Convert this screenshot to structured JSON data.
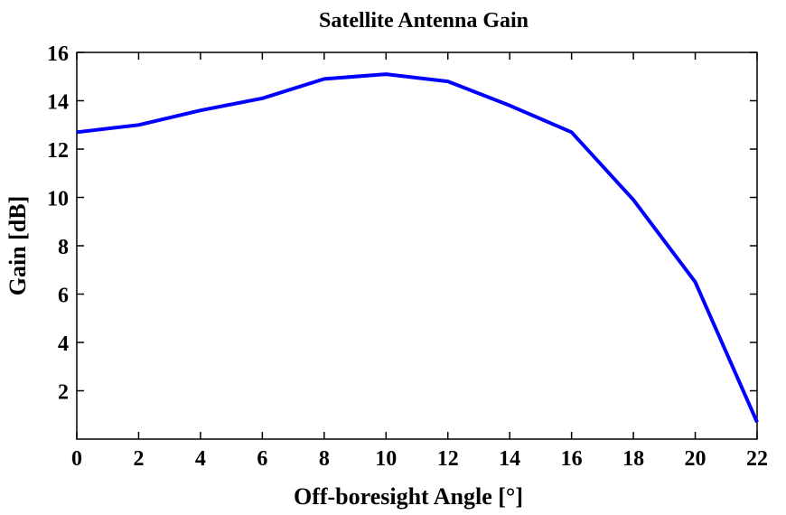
{
  "chart_data": {
    "type": "line",
    "title": "Satellite Antenna Gain",
    "xlabel": "Off-boresight Angle [°]",
    "ylabel": "Gain [dB]",
    "xlim": [
      0,
      22
    ],
    "ylim": [
      0,
      16
    ],
    "x_ticks": [
      "0",
      "2",
      "4",
      "6",
      "8",
      "10",
      "12",
      "14",
      "16",
      "18",
      "20",
      "22"
    ],
    "y_ticks": [
      "2",
      "4",
      "6",
      "8",
      "10",
      "12",
      "14",
      "16"
    ],
    "grid": false,
    "series": [
      {
        "color": "#0000ff",
        "x": [
          0,
          2,
          4,
          6,
          8,
          10,
          12,
          14,
          16,
          18,
          20,
          22
        ],
        "y": [
          12.7,
          13.0,
          13.6,
          14.1,
          14.9,
          15.1,
          14.8,
          13.8,
          12.7,
          9.9,
          6.5,
          0.7
        ]
      }
    ]
  }
}
